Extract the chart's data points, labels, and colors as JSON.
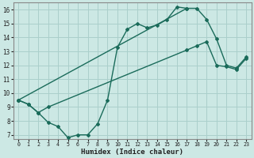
{
  "xlabel": "Humidex (Indice chaleur)",
  "xlim": [
    -0.5,
    23.5
  ],
  "ylim": [
    6.7,
    16.5
  ],
  "yticks": [
    7,
    8,
    9,
    10,
    11,
    12,
    13,
    14,
    15,
    16
  ],
  "xticks": [
    0,
    1,
    2,
    3,
    4,
    5,
    6,
    7,
    8,
    9,
    10,
    11,
    12,
    13,
    14,
    15,
    16,
    17,
    18,
    19,
    20,
    21,
    22,
    23
  ],
  "bg_color": "#cce8e4",
  "line_color": "#1a6b5a",
  "grid_color": "#aacfcb",
  "line1_x": [
    0,
    1,
    2,
    3,
    4,
    5,
    6,
    7,
    8,
    9,
    10,
    11,
    12,
    13,
    14,
    15,
    16,
    17
  ],
  "line1_y": [
    9.5,
    9.2,
    8.6,
    7.9,
    7.6,
    6.8,
    7.0,
    7.0,
    7.8,
    9.5,
    13.3,
    14.6,
    15.0,
    14.7,
    14.9,
    15.3,
    16.2,
    16.1
  ],
  "line2_x": [
    0,
    17,
    18,
    19,
    20,
    21,
    22,
    23
  ],
  "line2_y": [
    9.5,
    16.1,
    16.1,
    15.3,
    13.9,
    12.0,
    11.8,
    12.6
  ],
  "line3_x": [
    0,
    1,
    2,
    3,
    17,
    18,
    19,
    20,
    21,
    22,
    23
  ],
  "line3_y": [
    9.5,
    9.2,
    8.6,
    9.0,
    13.1,
    13.4,
    13.7,
    12.0,
    11.9,
    11.7,
    12.5
  ]
}
